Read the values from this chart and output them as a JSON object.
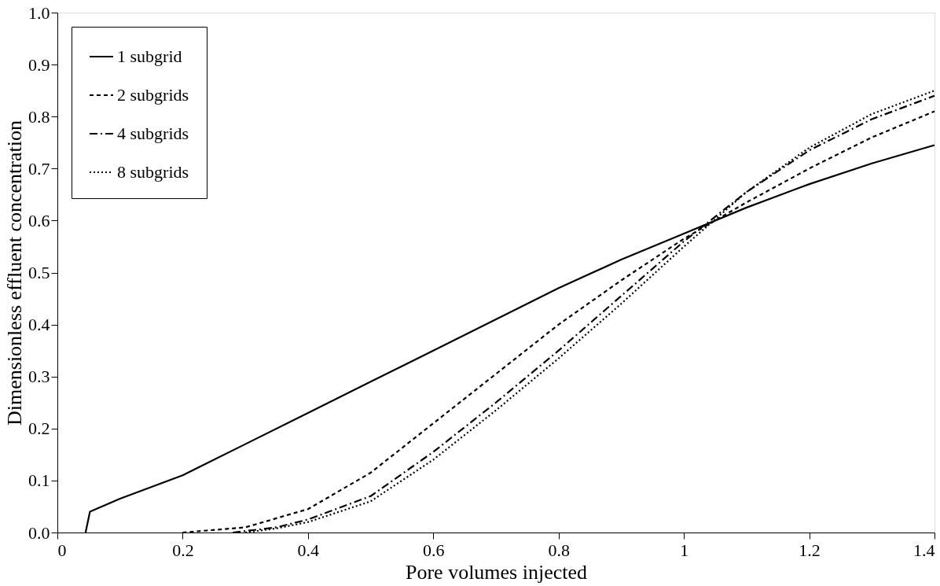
{
  "chart_data": {
    "type": "line",
    "xlabel": "Pore volumes injected",
    "ylabel": "Dimensionless effluent concentration",
    "xlim": [
      0,
      1.4
    ],
    "xticks": [
      0,
      0.2,
      0.4,
      0.6,
      0.8,
      1,
      1.2,
      1.4
    ],
    "ylim": [
      0,
      1.0
    ],
    "yticks": [
      {
        "value": 0,
        "label": "0.0"
      },
      {
        "value": 0.1,
        "label": "0.1"
      },
      {
        "value": 0.2,
        "label": "0.2"
      },
      {
        "value": 0.3,
        "label": "0.3"
      },
      {
        "value": 0.4,
        "label": "0.4"
      },
      {
        "value": 0.5,
        "label": "0.5"
      },
      {
        "value": 0.6,
        "label": "0.6"
      },
      {
        "value": 0.7,
        "label": "0.7"
      },
      {
        "value": 0.8,
        "label": "0.8"
      },
      {
        "value": 0.9,
        "label": "0.9"
      },
      {
        "value": 1.0,
        "label": "1.0"
      }
    ],
    "grid": false,
    "legend": "top left",
    "marker": "none",
    "series": [
      {
        "name": "1 subgrid",
        "color": "#000000",
        "line_style": "solid",
        "x": [
          0.045,
          0.052,
          0.1,
          0.2,
          0.3,
          0.4,
          0.5,
          0.6,
          0.7,
          0.8,
          0.9,
          1.0,
          1.1,
          1.2,
          1.3,
          1.4
        ],
        "values": [
          0,
          0.04,
          0.065,
          0.11,
          0.17,
          0.23,
          0.29,
          0.35,
          0.41,
          0.47,
          0.525,
          0.575,
          0.625,
          0.67,
          0.71,
          0.745
        ]
      },
      {
        "name": "2 subgrids",
        "color": "#000000",
        "line_style": "dashed",
        "x": [
          0.2,
          0.3,
          0.4,
          0.5,
          0.6,
          0.7,
          0.8,
          0.9,
          1.0,
          1.1,
          1.2,
          1.3,
          1.4
        ],
        "values": [
          0,
          0.01,
          0.045,
          0.115,
          0.21,
          0.305,
          0.4,
          0.485,
          0.565,
          0.635,
          0.7,
          0.76,
          0.81
        ]
      },
      {
        "name": "4 subgrids",
        "color": "#000000",
        "line_style": "dashdot",
        "x": [
          0.28,
          0.35,
          0.4,
          0.5,
          0.6,
          0.7,
          0.8,
          0.9,
          1.0,
          1.1,
          1.2,
          1.3,
          1.4
        ],
        "values": [
          0,
          0.01,
          0.025,
          0.07,
          0.155,
          0.25,
          0.35,
          0.455,
          0.56,
          0.655,
          0.735,
          0.795,
          0.84
        ]
      },
      {
        "name": "8 subgrids",
        "color": "#000000",
        "line_style": "dotted",
        "x": [
          0.3,
          0.35,
          0.4,
          0.5,
          0.6,
          0.7,
          0.8,
          0.9,
          1.0,
          1.1,
          1.2,
          1.3,
          1.4
        ],
        "values": [
          0,
          0.008,
          0.02,
          0.06,
          0.14,
          0.235,
          0.335,
          0.44,
          0.55,
          0.655,
          0.74,
          0.805,
          0.85
        ]
      }
    ]
  }
}
